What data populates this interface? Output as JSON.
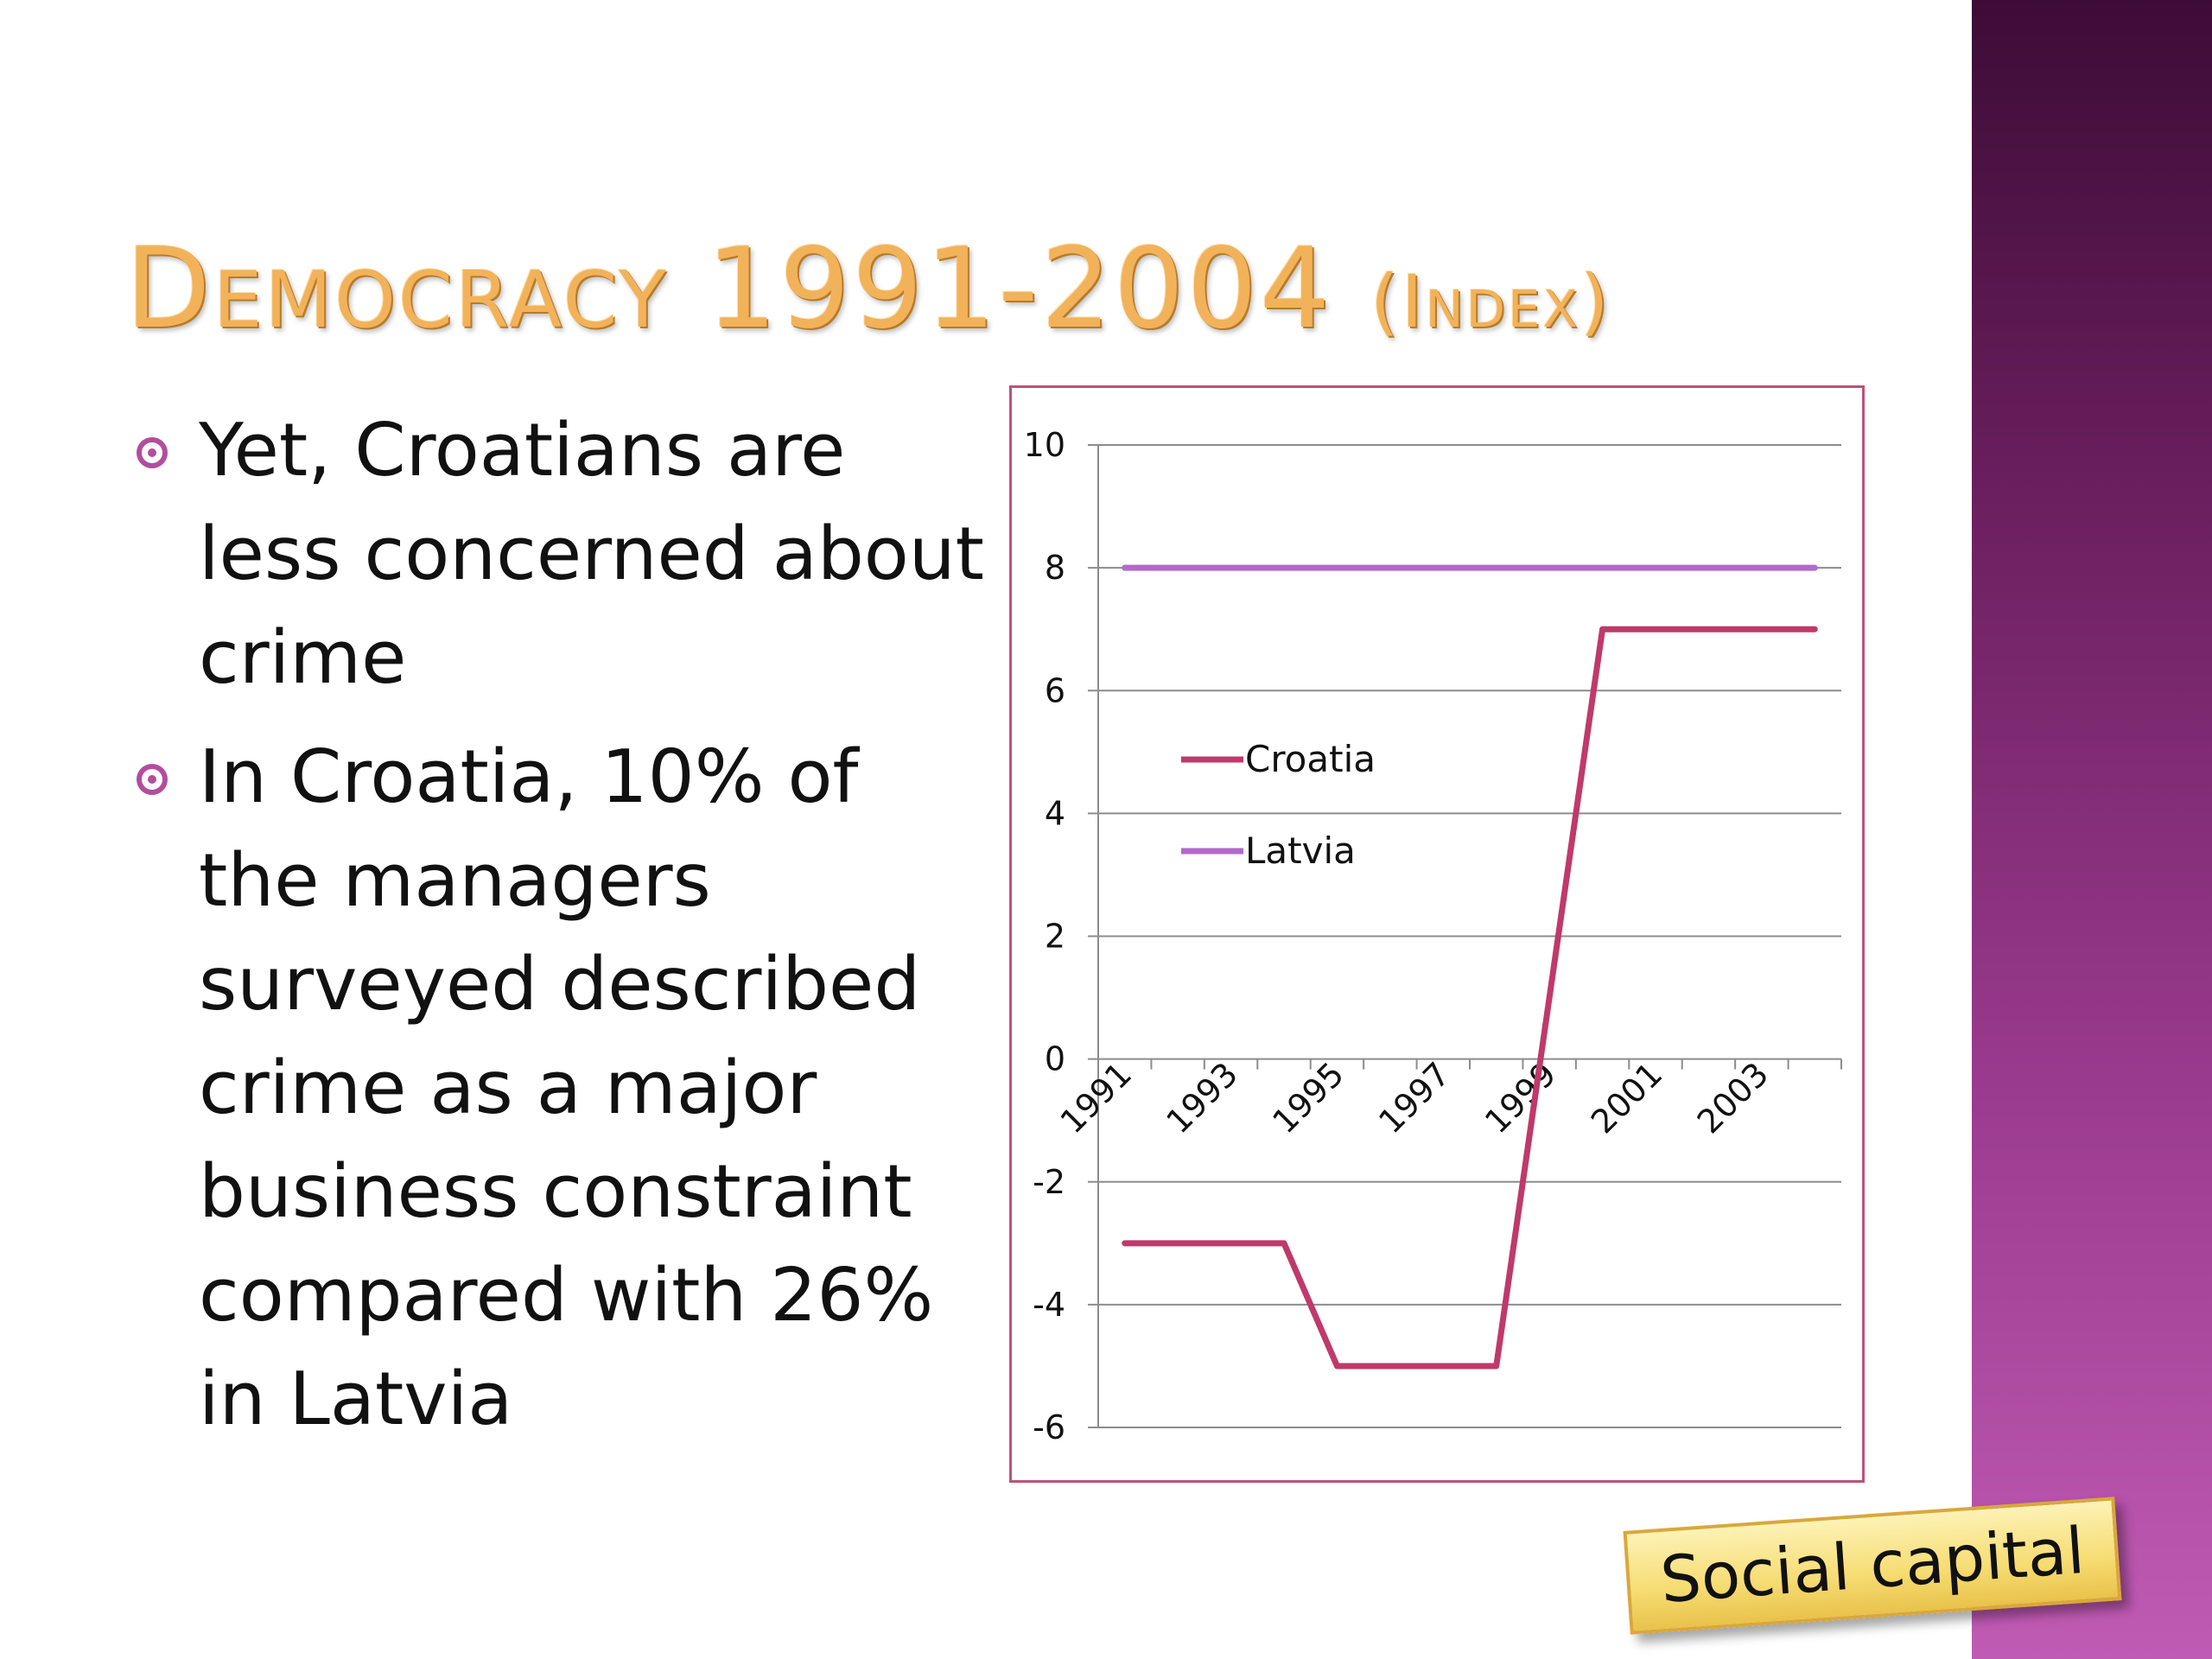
{
  "slide": {
    "title_main": "Democracy 1991-2004",
    "title_index": "(Index)",
    "bullets": [
      "Yet, Croatians are less concerned about crime",
      "In Croatia, 10% of the managers surveyed described crime as a major business constraint compared with 26% in Latvia"
    ],
    "tag_label": "Social capital"
  },
  "colors": {
    "title": "#f2b25a",
    "bullet_marker": "#b34d9e",
    "croatia_line": "#c0396b",
    "latvia_line": "#b06ac9",
    "chart_border": "#c0507c",
    "side_band": "#8a2f7d"
  },
  "chart_data": {
    "type": "line",
    "title": "",
    "xlabel": "",
    "ylabel": "",
    "ylim": [
      -6,
      10
    ],
    "y_ticks": [
      10,
      8,
      6,
      4,
      2,
      0,
      -2,
      -4,
      -6
    ],
    "x_tick_labels": [
      "1991",
      "1993",
      "1995",
      "1997",
      "1999",
      "2001",
      "2003"
    ],
    "x": [
      1991,
      1992,
      1993,
      1994,
      1995,
      1996,
      1997,
      1998,
      1999,
      2000,
      2001,
      2002,
      2003,
      2004
    ],
    "grid": true,
    "legend_position": "middle-left",
    "series": [
      {
        "name": "Croatia",
        "color": "#c0396b",
        "values": [
          -3,
          -3,
          -3,
          -3,
          -5,
          -5,
          -5,
          -5,
          1,
          7,
          7,
          7,
          7,
          7
        ]
      },
      {
        "name": "Latvia",
        "color": "#b06ac9",
        "values": [
          8,
          8,
          8,
          8,
          8,
          8,
          8,
          8,
          8,
          8,
          8,
          8,
          8,
          8
        ]
      }
    ]
  }
}
